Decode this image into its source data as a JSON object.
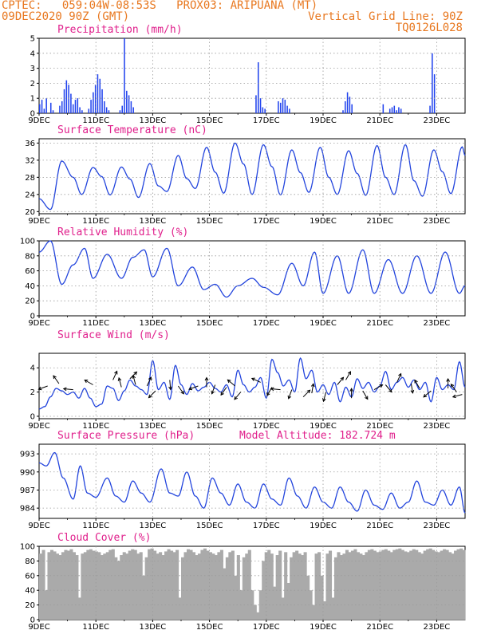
{
  "header": {
    "line1": "CPTEC:   059:04W-08:53S   PROX03: ARIPUANA (MT)",
    "line2_left": "09DEC2020 90Z (GMT)",
    "line2_right": "Vertical Grid Line: 90Z",
    "line3_right": "TQ0126L028"
  },
  "colors": {
    "header_text": "#e87820",
    "panel_title": "#e0208c",
    "line": "#2244dd",
    "bar": "#2244ee",
    "cloud": "#aaaaaa",
    "grid": "#9a9a9a"
  },
  "x_axis": {
    "tick_labels": [
      "9DEC",
      "11DEC",
      "13DEC",
      "15DEC",
      "17DEC",
      "19DEC",
      "21DEC",
      "23DEC"
    ],
    "tick_days": [
      0,
      2,
      4,
      6,
      8,
      10,
      12,
      14
    ],
    "day_span": [
      0,
      15
    ]
  },
  "chart_data": [
    {
      "type": "bar",
      "title": "Precipitation (mm/h)",
      "ylim": [
        0,
        5
      ],
      "yticks": [
        0,
        1,
        2,
        3,
        4,
        5
      ],
      "grid": true,
      "samples_per_day": 8,
      "values": [
        0.6,
        0.9,
        0.3,
        1.0,
        0,
        0.7,
        0.2,
        0,
        0,
        0.5,
        0.8,
        1.6,
        2.2,
        1.9,
        1.3,
        0.6,
        0.9,
        1.0,
        0.4,
        0.2,
        0,
        0,
        0.3,
        0.9,
        1.4,
        1.9,
        2.6,
        2.3,
        1.6,
        0.8,
        0.4,
        0.2,
        0,
        0,
        0,
        0,
        0.2,
        0.5,
        5.0,
        1.5,
        1.2,
        0.8,
        0.4,
        0,
        0,
        0,
        0,
        0,
        0,
        0,
        0,
        0,
        0,
        0,
        0,
        0,
        0,
        0,
        0,
        0,
        0,
        0,
        0,
        0,
        0,
        0,
        0,
        0,
        0,
        0,
        0,
        0,
        0,
        0,
        0,
        0,
        0,
        0,
        0,
        0,
        0,
        0,
        0,
        0,
        0,
        0,
        0,
        0,
        0,
        0,
        0,
        0,
        0,
        0,
        0,
        0,
        0,
        1.2,
        3.4,
        1.0,
        0.4,
        0.3,
        0,
        0,
        0,
        0,
        0,
        0.8,
        0.7,
        1.0,
        0.9,
        0.5,
        0.3,
        0,
        0,
        0,
        0,
        0,
        0,
        0,
        0,
        0,
        0,
        0,
        0,
        0,
        0,
        0,
        0,
        0,
        0,
        0,
        0,
        0,
        0,
        0,
        0.2,
        0.8,
        1.4,
        1.1,
        0.6,
        0,
        0,
        0,
        0,
        0,
        0,
        0,
        0,
        0,
        0,
        0,
        0,
        0,
        0.6,
        0,
        0,
        0.3,
        0.4,
        0.5,
        0.2,
        0.4,
        0.3,
        0,
        0,
        0,
        0,
        0,
        0,
        0,
        0,
        0,
        0,
        0,
        0,
        0.5,
        4.0,
        2.6,
        0,
        0,
        0,
        0,
        0,
        0,
        0,
        0,
        0,
        0,
        0,
        0,
        0
      ]
    },
    {
      "type": "line",
      "title": "Surface Temperature (nC)",
      "ylim": [
        19.5,
        37
      ],
      "yticks": [
        20,
        24,
        28,
        32,
        36
      ],
      "grid": true,
      "keypoints": [
        [
          0,
          23
        ],
        [
          0.4,
          20.5
        ],
        [
          0.8,
          31.8
        ],
        [
          1.2,
          28.0
        ],
        [
          1.5,
          24.0
        ],
        [
          1.9,
          30.3
        ],
        [
          2.2,
          28.2
        ],
        [
          2.5,
          23.9
        ],
        [
          2.9,
          30.4
        ],
        [
          3.2,
          27.6
        ],
        [
          3.5,
          23.3
        ],
        [
          3.9,
          31.2
        ],
        [
          4.2,
          26.0
        ],
        [
          4.5,
          24.7
        ],
        [
          4.9,
          33.1
        ],
        [
          5.2,
          27.7
        ],
        [
          5.5,
          25.4
        ],
        [
          5.9,
          35.0
        ],
        [
          6.2,
          29.2
        ],
        [
          6.5,
          24.3
        ],
        [
          6.9,
          36.0
        ],
        [
          7.2,
          31.1
        ],
        [
          7.5,
          24.0
        ],
        [
          7.9,
          35.6
        ],
        [
          8.2,
          30.5
        ],
        [
          8.5,
          23.9
        ],
        [
          8.9,
          34.4
        ],
        [
          9.2,
          29.1
        ],
        [
          9.5,
          24.5
        ],
        [
          9.9,
          35.0
        ],
        [
          10.2,
          28.0
        ],
        [
          10.5,
          24.0
        ],
        [
          10.9,
          34.2
        ],
        [
          11.2,
          28.9
        ],
        [
          11.5,
          23.8
        ],
        [
          11.9,
          35.4
        ],
        [
          12.2,
          28.0
        ],
        [
          12.5,
          24.0
        ],
        [
          12.9,
          35.6
        ],
        [
          13.2,
          27.2
        ],
        [
          13.5,
          23.6
        ],
        [
          13.9,
          34.4
        ],
        [
          14.2,
          29.3
        ],
        [
          14.5,
          24.2
        ],
        [
          14.9,
          35.1
        ],
        [
          15.0,
          33.1
        ]
      ]
    },
    {
      "type": "line",
      "title": "Relative Humidity (%)",
      "ylim": [
        0,
        100
      ],
      "yticks": [
        0,
        20,
        40,
        60,
        80,
        100
      ],
      "grid": true,
      "keypoints": [
        [
          0,
          85
        ],
        [
          0.4,
          100
        ],
        [
          0.8,
          42
        ],
        [
          1.2,
          68
        ],
        [
          1.6,
          90
        ],
        [
          1.9,
          50
        ],
        [
          2.4,
          82
        ],
        [
          2.9,
          50
        ],
        [
          3.3,
          78
        ],
        [
          3.7,
          88
        ],
        [
          4.0,
          52
        ],
        [
          4.5,
          90
        ],
        [
          4.9,
          40
        ],
        [
          5.4,
          65
        ],
        [
          5.8,
          35
        ],
        [
          6.2,
          42
        ],
        [
          6.6,
          25
        ],
        [
          7.0,
          40
        ],
        [
          7.5,
          50
        ],
        [
          7.9,
          38
        ],
        [
          8.4,
          28
        ],
        [
          8.9,
          70
        ],
        [
          9.3,
          40
        ],
        [
          9.7,
          85
        ],
        [
          10.0,
          30
        ],
        [
          10.5,
          80
        ],
        [
          10.9,
          30
        ],
        [
          11.4,
          88
        ],
        [
          11.8,
          30
        ],
        [
          12.3,
          75
        ],
        [
          12.8,
          30
        ],
        [
          13.3,
          80
        ],
        [
          13.8,
          30
        ],
        [
          14.3,
          85
        ],
        [
          14.8,
          30
        ],
        [
          15.0,
          40
        ]
      ]
    },
    {
      "type": "line",
      "title": "Surface Wind (m/s)",
      "ylim": [
        -0.2,
        5.2
      ],
      "yticks": [
        0,
        2,
        4
      ],
      "grid": true,
      "keypoints": [
        [
          0,
          0.6
        ],
        [
          0.2,
          0.8
        ],
        [
          0.4,
          1.6
        ],
        [
          0.6,
          2.3
        ],
        [
          0.8,
          2.1
        ],
        [
          1.0,
          1.8
        ],
        [
          1.2,
          2.0
        ],
        [
          1.4,
          1.5
        ],
        [
          1.6,
          2.3
        ],
        [
          1.8,
          1.5
        ],
        [
          2.0,
          0.8
        ],
        [
          2.2,
          1.0
        ],
        [
          2.4,
          2.5
        ],
        [
          2.6,
          2.3
        ],
        [
          2.8,
          1.3
        ],
        [
          3.0,
          2.1
        ],
        [
          3.2,
          3.0
        ],
        [
          3.4,
          2.5
        ],
        [
          3.6,
          2.2
        ],
        [
          3.8,
          1.8
        ],
        [
          4.0,
          4.6
        ],
        [
          4.2,
          2.2
        ],
        [
          4.4,
          2.8
        ],
        [
          4.6,
          1.4
        ],
        [
          4.8,
          4.2
        ],
        [
          5.0,
          2.6
        ],
        [
          5.2,
          1.8
        ],
        [
          5.4,
          2.7
        ],
        [
          5.6,
          2.1
        ],
        [
          5.8,
          2.4
        ],
        [
          6.0,
          2.8
        ],
        [
          6.2,
          2.3
        ],
        [
          6.4,
          2.0
        ],
        [
          6.6,
          2.6
        ],
        [
          6.8,
          1.6
        ],
        [
          7.0,
          3.8
        ],
        [
          7.2,
          2.6
        ],
        [
          7.4,
          2.0
        ],
        [
          7.6,
          2.4
        ],
        [
          7.8,
          3.2
        ],
        [
          8.0,
          1.5
        ],
        [
          8.2,
          4.7
        ],
        [
          8.4,
          3.6
        ],
        [
          8.6,
          2.5
        ],
        [
          8.8,
          3.0
        ],
        [
          9.0,
          2.0
        ],
        [
          9.2,
          4.8
        ],
        [
          9.4,
          3.1
        ],
        [
          9.6,
          3.8
        ],
        [
          9.8,
          2.0
        ],
        [
          10.0,
          2.6
        ],
        [
          10.2,
          1.8
        ],
        [
          10.4,
          2.8
        ],
        [
          10.6,
          1.2
        ],
        [
          10.8,
          2.4
        ],
        [
          11.0,
          1.6
        ],
        [
          11.2,
          3.1
        ],
        [
          11.4,
          2.3
        ],
        [
          11.6,
          2.8
        ],
        [
          11.8,
          2.0
        ],
        [
          12.0,
          2.5
        ],
        [
          12.2,
          3.7
        ],
        [
          12.4,
          2.2
        ],
        [
          12.6,
          2.8
        ],
        [
          12.8,
          3.2
        ],
        [
          13.0,
          2.4
        ],
        [
          13.2,
          3.0
        ],
        [
          13.4,
          2.2
        ],
        [
          13.6,
          2.8
        ],
        [
          13.8,
          1.2
        ],
        [
          14.0,
          3.2
        ],
        [
          14.2,
          2.2
        ],
        [
          14.4,
          2.6
        ],
        [
          14.6,
          2.2
        ],
        [
          14.8,
          4.5
        ],
        [
          15.0,
          2.4
        ]
      ]
    },
    {
      "type": "line",
      "title": "Surface Pressure (hPa)",
      "subtitle": "Model Altitude: 182.724 m",
      "ylim": [
        982.3,
        994.6
      ],
      "yticks": [
        984,
        987,
        990,
        993
      ],
      "grid": true,
      "keypoints": [
        [
          0,
          991.5
        ],
        [
          0.25,
          991.0
        ],
        [
          0.55,
          993.2
        ],
        [
          0.85,
          989.0
        ],
        [
          1.2,
          985.5
        ],
        [
          1.45,
          991.0
        ],
        [
          1.7,
          986.5
        ],
        [
          2.0,
          985.8
        ],
        [
          2.4,
          989.0
        ],
        [
          2.7,
          986.0
        ],
        [
          3.0,
          985.0
        ],
        [
          3.3,
          988.5
        ],
        [
          3.6,
          986.5
        ],
        [
          3.9,
          985.0
        ],
        [
          4.3,
          990.5
        ],
        [
          4.6,
          986.5
        ],
        [
          4.9,
          986.0
        ],
        [
          5.2,
          990.0
        ],
        [
          5.5,
          986.0
        ],
        [
          5.8,
          984.0
        ],
        [
          6.1,
          989.0
        ],
        [
          6.4,
          986.5
        ],
        [
          6.7,
          984.5
        ],
        [
          7.0,
          988.0
        ],
        [
          7.3,
          985.0
        ],
        [
          7.6,
          984.0
        ],
        [
          7.9,
          988.0
        ],
        [
          8.2,
          985.5
        ],
        [
          8.5,
          984.5
        ],
        [
          8.8,
          989.0
        ],
        [
          9.1,
          986.0
        ],
        [
          9.4,
          984.0
        ],
        [
          9.7,
          987.5
        ],
        [
          10.0,
          985.0
        ],
        [
          10.3,
          984.0
        ],
        [
          10.6,
          987.5
        ],
        [
          10.9,
          985.0
        ],
        [
          11.2,
          983.5
        ],
        [
          11.5,
          987.0
        ],
        [
          11.8,
          984.5
        ],
        [
          12.1,
          983.8
        ],
        [
          12.4,
          986.5
        ],
        [
          12.7,
          984.0
        ],
        [
          13.0,
          985.0
        ],
        [
          13.3,
          988.5
        ],
        [
          13.6,
          985.0
        ],
        [
          13.9,
          984.5
        ],
        [
          14.2,
          987.0
        ],
        [
          14.5,
          984.5
        ],
        [
          14.8,
          987.5
        ],
        [
          15.0,
          983.2
        ]
      ]
    },
    {
      "type": "bar",
      "title": "Cloud Cover (%)",
      "ylim": [
        0,
        100
      ],
      "yticks": [
        0,
        20,
        40,
        60,
        80,
        100
      ],
      "grid": true,
      "samples_per_day": 8,
      "values": [
        90,
        95,
        40,
        92,
        95,
        93,
        90,
        88,
        92,
        95,
        94,
        96,
        92,
        88,
        30,
        90,
        92,
        95,
        96,
        94,
        93,
        92,
        88,
        90,
        92,
        95,
        96,
        85,
        80,
        88,
        92,
        90,
        94,
        96,
        95,
        90,
        92,
        60,
        85,
        96,
        97,
        94,
        90,
        92,
        88,
        93,
        96,
        94,
        92,
        95,
        30,
        85,
        92,
        96,
        95,
        92,
        88,
        90,
        95,
        97,
        94,
        92,
        90,
        88,
        92,
        95,
        70,
        85,
        92,
        94,
        60,
        88,
        40,
        85,
        90,
        95,
        40,
        20,
        10,
        40,
        80,
        92,
        95,
        90,
        45,
        88,
        94,
        30,
        92,
        50,
        85,
        92,
        94,
        90,
        88,
        92,
        60,
        40,
        20,
        90,
        92,
        60,
        25,
        90,
        94,
        30,
        85,
        92,
        88,
        90,
        95,
        92,
        94,
        96,
        92,
        90,
        88,
        92,
        95,
        96,
        94,
        92,
        93,
        95,
        96,
        94,
        92,
        95,
        96,
        97,
        95,
        93,
        92,
        94,
        96,
        95,
        92,
        90,
        94,
        96,
        97,
        95,
        93,
        92,
        94,
        96,
        95,
        92,
        90,
        94,
        96,
        97,
        95
      ]
    }
  ],
  "wind_arrows": [
    [
      0.3,
      2.5,
      200
    ],
    [
      0.7,
      2.7,
      125
    ],
    [
      1.2,
      2.2,
      175
    ],
    [
      1.9,
      2.6,
      150
    ],
    [
      2.6,
      3.0,
      65
    ],
    [
      2.9,
      2.4,
      105
    ],
    [
      3.2,
      3.1,
      45
    ],
    [
      3.4,
      2.6,
      105
    ],
    [
      3.8,
      2.5,
      65
    ],
    [
      4.1,
      2.1,
      225
    ],
    [
      4.6,
      3.0,
      275
    ],
    [
      4.9,
      2.5,
      305
    ],
    [
      5.6,
      2.5,
      200
    ],
    [
      5.9,
      2.4,
      90
    ],
    [
      6.2,
      2.6,
      250
    ],
    [
      6.6,
      2.4,
      235
    ],
    [
      6.9,
      2.5,
      140
    ],
    [
      7.1,
      2.0,
      230
    ],
    [
      7.8,
      2.8,
      155
    ],
    [
      8.2,
      2.4,
      240
    ],
    [
      8.5,
      2.2,
      175
    ],
    [
      8.9,
      2.2,
      250
    ],
    [
      9.3,
      1.6,
      45
    ],
    [
      9.6,
      1.9,
      80
    ],
    [
      10.1,
      2.0,
      255
    ],
    [
      10.5,
      2.6,
      50
    ],
    [
      10.8,
      3.0,
      60
    ],
    [
      11.0,
      1.5,
      90
    ],
    [
      11.4,
      2.1,
      300
    ],
    [
      11.8,
      2.2,
      30
    ],
    [
      12.2,
      2.6,
      310
    ],
    [
      12.6,
      2.8,
      65
    ],
    [
      13.1,
      2.7,
      280
    ],
    [
      13.4,
      2.3,
      120
    ],
    [
      13.8,
      2.1,
      220
    ],
    [
      14.4,
      2.3,
      90
    ],
    [
      14.7,
      2.0,
      125
    ],
    [
      14.9,
      1.8,
      195
    ]
  ]
}
